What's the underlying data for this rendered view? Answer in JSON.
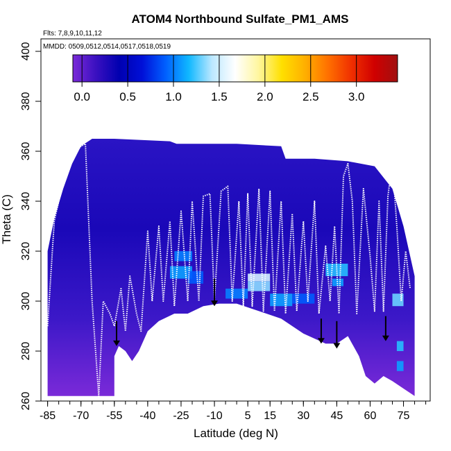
{
  "chart_data": {
    "type": "heatmap",
    "title": "ATOM4 Northbound Sulfate_PM1_AMS",
    "flights_label": "Flts: 7,8,9,10,11,12",
    "mmdd_label": "MMDD: 0509,0512,0514,0517,0518,0519",
    "xlabel": "Latitude (deg N)",
    "ylabel": "Theta (C)",
    "xlim": [
      -88,
      87
    ],
    "ylim": [
      260,
      405
    ],
    "x_ticks": [
      -85,
      -70,
      -55,
      -40,
      -25,
      -10,
      5,
      15,
      30,
      45,
      60,
      75
    ],
    "x_tick_labels": [
      "-85",
      "-70",
      "-55",
      "-40",
      "-25",
      "-10",
      "5",
      "15",
      "30",
      "45",
      "60",
      "75"
    ],
    "y_ticks": [
      260,
      280,
      300,
      320,
      340,
      360,
      380,
      400
    ],
    "y_tick_labels": [
      "260",
      "280",
      "300",
      "320",
      "340",
      "360",
      "380",
      "400"
    ],
    "colorbar": {
      "range": [
        -0.1,
        3.45
      ],
      "ticks": [
        0.0,
        0.5,
        1.0,
        1.5,
        2.0,
        2.5,
        3.0
      ],
      "tick_labels": [
        "0.0",
        "0.5",
        "1.0",
        "1.5",
        "2.0",
        "2.5",
        "3.0"
      ],
      "colors": [
        "#7b2ad8",
        "#3a10c0",
        "#0000b0",
        "#0010d8",
        "#0060ff",
        "#10b8ff",
        "#bde8ff",
        "#ffffff",
        "#fff6a0",
        "#ffe000",
        "#ffb000",
        "#ff7000",
        "#f03000",
        "#d00000",
        "#a01010"
      ]
    },
    "field": {
      "dominant_value_range": [
        0.3,
        0.6
      ],
      "bottom_boundary": [
        [
          -85,
          262
        ],
        [
          -55,
          262
        ],
        [
          -55,
          278
        ],
        [
          -53,
          282
        ],
        [
          -50,
          280
        ],
        [
          -47,
          276
        ],
        [
          -44,
          280
        ],
        [
          -40,
          288
        ],
        [
          -35,
          292
        ],
        [
          -28,
          295
        ],
        [
          -22,
          295
        ],
        [
          -15,
          298
        ],
        [
          -8,
          299
        ],
        [
          0,
          299
        ],
        [
          10,
          296
        ],
        [
          20,
          293
        ],
        [
          30,
          287
        ],
        [
          40,
          283
        ],
        [
          45,
          283
        ],
        [
          50,
          286
        ],
        [
          55,
          278
        ],
        [
          58,
          270
        ],
        [
          62,
          267
        ],
        [
          66,
          270
        ],
        [
          70,
          268
        ],
        [
          75,
          265
        ],
        [
          80,
          262
        ]
      ],
      "top_boundary": [
        [
          -85,
          320
        ],
        [
          -82,
          333
        ],
        [
          -78,
          345
        ],
        [
          -74,
          355
        ],
        [
          -70,
          362
        ],
        [
          -65,
          365
        ],
        [
          -55,
          365
        ],
        [
          -30,
          364
        ],
        [
          -27,
          363
        ],
        [
          0,
          363
        ],
        [
          20,
          362
        ],
        [
          22,
          357
        ],
        [
          35,
          357
        ],
        [
          50,
          356
        ],
        [
          62,
          354
        ],
        [
          70,
          345
        ],
        [
          75,
          330
        ],
        [
          80,
          310
        ]
      ],
      "enhanced_patches": [
        {
          "lat": [
            -30,
            -20
          ],
          "theta": [
            309,
            314
          ],
          "value": 1.1
        },
        {
          "lat": [
            -28,
            -20
          ],
          "theta": [
            316,
            320
          ],
          "value": 1.0
        },
        {
          "lat": [
            -22,
            -15
          ],
          "theta": [
            307,
            312
          ],
          "value": 0.9
        },
        {
          "lat": [
            -5,
            5
          ],
          "theta": [
            301,
            305
          ],
          "value": 1.0
        },
        {
          "lat": [
            5,
            15
          ],
          "theta": [
            304,
            308
          ],
          "value": 1.35
        },
        {
          "lat": [
            5,
            15
          ],
          "theta": [
            308,
            311
          ],
          "value": 1.5
        },
        {
          "lat": [
            15,
            25
          ],
          "theta": [
            298,
            303
          ],
          "value": 1.1
        },
        {
          "lat": [
            40,
            50
          ],
          "theta": [
            310,
            315
          ],
          "value": 1.2
        },
        {
          "lat": [
            43,
            48
          ],
          "theta": [
            306,
            309
          ],
          "value": 1.1
        },
        {
          "lat": [
            25,
            35
          ],
          "theta": [
            299,
            303
          ],
          "value": 0.9
        },
        {
          "lat": [
            70,
            75
          ],
          "theta": [
            298,
            303
          ],
          "value": 1.3
        },
        {
          "lat": [
            72,
            75
          ],
          "theta": [
            280,
            284
          ],
          "value": 1.2
        },
        {
          "lat": [
            72,
            75
          ],
          "theta": [
            272,
            276
          ],
          "value": 1.1
        }
      ]
    },
    "tropopause_markers": [
      {
        "lat": -54,
        "theta_top": 292,
        "theta_bottom": 282
      },
      {
        "lat": -10,
        "theta_top": 309,
        "theta_bottom": 298
      },
      {
        "lat": 38,
        "theta_top": 293,
        "theta_bottom": 283
      },
      {
        "lat": 45,
        "theta_top": 292,
        "theta_bottom": 281
      },
      {
        "lat": 67,
        "theta_top": 294,
        "theta_bottom": 284
      }
    ],
    "flight_track_vertices": [
      [
        -85,
        290
      ],
      [
        -82,
        332
      ],
      [
        -78,
        348
      ],
      [
        -74,
        358
      ],
      [
        -70,
        362
      ],
      [
        -68,
        363
      ],
      [
        -65,
        300
      ],
      [
        -62,
        262
      ],
      [
        -60,
        300
      ],
      [
        -57,
        295
      ],
      [
        -55,
        290
      ],
      [
        -52,
        305
      ],
      [
        -50,
        288
      ],
      [
        -48,
        310
      ],
      [
        -45,
        295
      ],
      [
        -43,
        288
      ],
      [
        -40,
        328
      ],
      [
        -38,
        300
      ],
      [
        -35,
        330
      ],
      [
        -33,
        300
      ],
      [
        -30,
        332
      ],
      [
        -28,
        298
      ],
      [
        -25,
        336
      ],
      [
        -22,
        300
      ],
      [
        -20,
        340
      ],
      [
        -17,
        300
      ],
      [
        -15,
        342
      ],
      [
        -12,
        343
      ],
      [
        -10,
        300
      ],
      [
        -7,
        344
      ],
      [
        -4,
        346
      ],
      [
        -2,
        300
      ],
      [
        1,
        340
      ],
      [
        3,
        298
      ],
      [
        5,
        343
      ],
      [
        7,
        298
      ],
      [
        10,
        345
      ],
      [
        12,
        296
      ],
      [
        15,
        344
      ],
      [
        17,
        296
      ],
      [
        20,
        340
      ],
      [
        22,
        295
      ],
      [
        25,
        335
      ],
      [
        27,
        296
      ],
      [
        30,
        332
      ],
      [
        32,
        300
      ],
      [
        35,
        340
      ],
      [
        37,
        295
      ],
      [
        40,
        322
      ],
      [
        42,
        300
      ],
      [
        44,
        330
      ],
      [
        46,
        295
      ],
      [
        48,
        350
      ],
      [
        50,
        355
      ],
      [
        52,
        340
      ],
      [
        54,
        295
      ],
      [
        57,
        345
      ],
      [
        60,
        318
      ],
      [
        62,
        296
      ],
      [
        64,
        340
      ],
      [
        66,
        296
      ],
      [
        68,
        342
      ],
      [
        70,
        356
      ],
      [
        72,
        330
      ],
      [
        74,
        300
      ],
      [
        76,
        320
      ],
      [
        78,
        305
      ]
    ]
  }
}
